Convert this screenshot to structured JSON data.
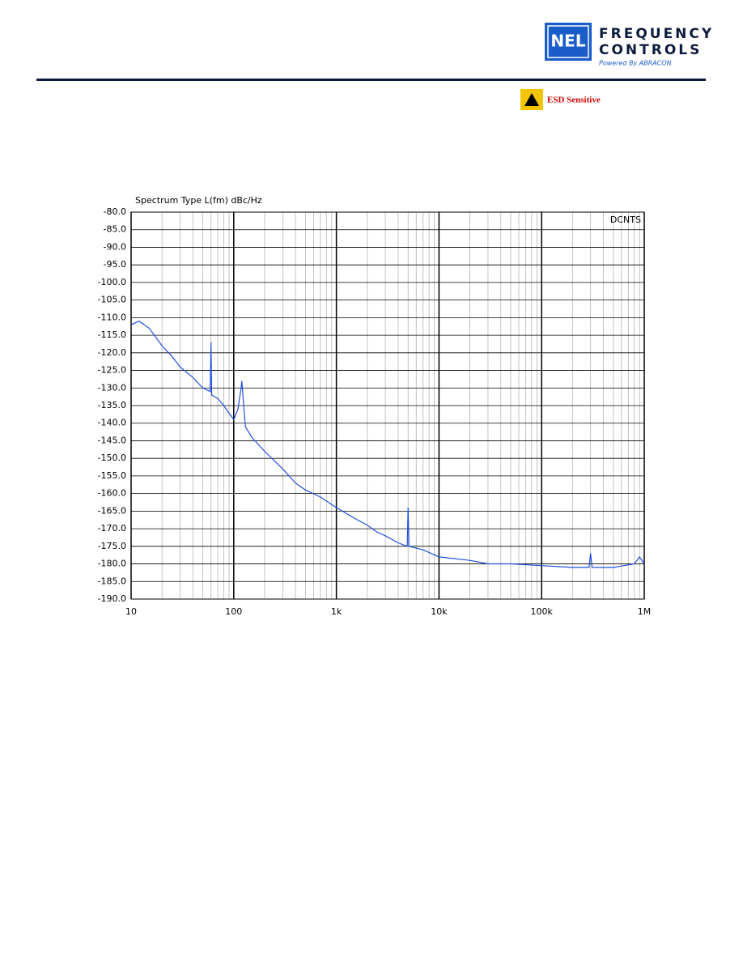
{
  "header": {
    "logo": "NEL",
    "brand_line1": "FREQUENCY",
    "brand_line2": "CONTROLS",
    "tagline": "Powered By ABRACON",
    "esd": "ESD Sensitive"
  },
  "chart_data": {
    "type": "line",
    "title": "Spectrum Type  L(fm) dBc/Hz",
    "annotation": "DCNTS",
    "x": [
      10,
      12,
      15,
      20,
      25,
      30,
      40,
      50,
      59,
      60,
      61,
      70,
      80,
      100,
      110,
      118,
      120,
      125,
      130,
      150,
      200,
      300,
      400,
      500,
      700,
      1000,
      1500,
      2000,
      2500,
      3000,
      4000,
      4900,
      5000,
      5100,
      7000,
      10000,
      20000,
      30000,
      50000,
      100000,
      200000,
      290000,
      300000,
      310000,
      500000,
      800000,
      900000,
      1000000
    ],
    "series": [
      {
        "name": "L(fm)",
        "color": "#1f4fe0",
        "values": [
          -112,
          -111,
          -113,
          -118,
          -121,
          -124,
          -127,
          -130,
          -131,
          -117,
          -132,
          -133,
          -135,
          -139,
          -136,
          -130,
          -128,
          -135,
          -141,
          -144,
          -148,
          -153,
          -157,
          -159,
          -161,
          -164,
          -167,
          -169,
          -171,
          -172,
          -174,
          -175,
          -164,
          -175,
          -176,
          -178,
          -179,
          -180,
          -180,
          -180.5,
          -181,
          -181,
          -177,
          -181,
          -181,
          -180,
          -178,
          -180
        ]
      }
    ],
    "xlim": [
      10,
      1000000
    ],
    "xscale": "log",
    "xticks": [
      10,
      100,
      {
        "value": 1000,
        "label": "1k"
      },
      {
        "value": 10000,
        "label": "10k"
      },
      {
        "value": 100000,
        "label": "100k"
      },
      {
        "value": 1000000,
        "label": "1M"
      }
    ],
    "ylim": [
      -190,
      -80
    ],
    "yticks": [
      {
        "value": -80,
        "label": "-80.0"
      },
      {
        "value": -85,
        "label": "-85.0"
      },
      {
        "value": -90,
        "label": "-90.0"
      },
      {
        "value": -95,
        "label": "-95.0"
      },
      {
        "value": -100,
        "label": "-100.0"
      },
      {
        "value": -105,
        "label": "-105.0"
      },
      {
        "value": -110,
        "label": "-110.0"
      },
      {
        "value": -115,
        "label": "-115.0"
      },
      {
        "value": -120,
        "label": "-120.0"
      },
      {
        "value": -125,
        "label": "-125.0"
      },
      {
        "value": -130,
        "label": "-130.0"
      },
      {
        "value": -135,
        "label": "-135.0"
      },
      {
        "value": -140,
        "label": "-140.0"
      },
      {
        "value": -145,
        "label": "-145.0"
      },
      {
        "value": -150,
        "label": "-150.0"
      },
      {
        "value": -155,
        "label": "-155.0"
      },
      {
        "value": -160,
        "label": "-160.0"
      },
      {
        "value": -165,
        "label": "-165.0"
      },
      {
        "value": -170,
        "label": "-170.0"
      },
      {
        "value": -175,
        "label": "-175.0"
      },
      {
        "value": -180,
        "label": "-180.0"
      },
      {
        "value": -185,
        "label": "-185.0"
      },
      {
        "value": -190,
        "label": "-190.0"
      }
    ],
    "grid": true
  }
}
